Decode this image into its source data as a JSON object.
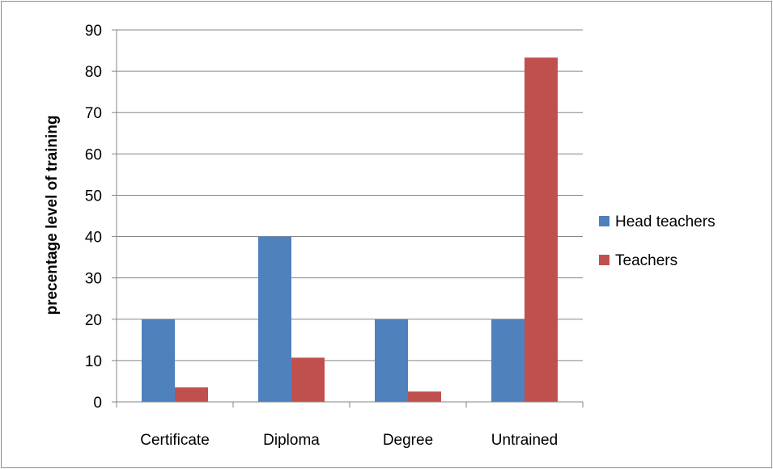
{
  "chart_data": {
    "type": "bar",
    "title": "",
    "xlabel": "",
    "ylabel": "precentage level of training",
    "categories": [
      "Certificate",
      "Diploma",
      "Degree",
      "Untrained"
    ],
    "series": [
      {
        "name": "Head teachers",
        "color": "#4f81bd",
        "values": [
          20,
          40,
          20,
          20
        ]
      },
      {
        "name": "Teachers",
        "color": "#c0504d",
        "values": [
          3.5,
          10.7,
          2.5,
          83.3
        ]
      }
    ],
    "ylim": [
      0,
      90
    ],
    "yticks": [
      "0",
      "10",
      "20",
      "30",
      "40",
      "50",
      "60",
      "70",
      "80",
      "90"
    ],
    "grid": true,
    "legend_position": "right"
  }
}
